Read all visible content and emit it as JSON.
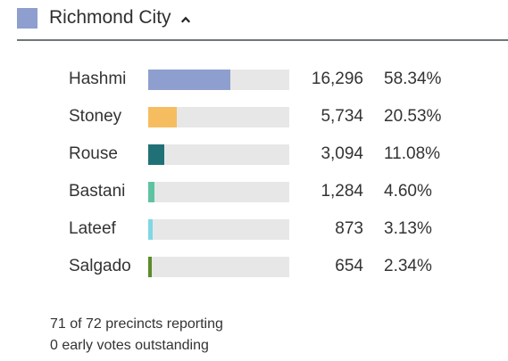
{
  "header": {
    "title": "Richmond City",
    "swatch_color": "#8e9ecf",
    "chevron_icon": "chevron-up-icon"
  },
  "candidates": [
    {
      "name": "Hashmi",
      "votes": "16,296",
      "percent": "58.34%",
      "share": 0.5834,
      "color": "#8e9ecf"
    },
    {
      "name": "Stoney",
      "votes": "5,734",
      "percent": "20.53%",
      "share": 0.2053,
      "color": "#f6bd60"
    },
    {
      "name": "Rouse",
      "votes": "3,094",
      "percent": "11.08%",
      "share": 0.1108,
      "color": "#1f7177"
    },
    {
      "name": "Bastani",
      "votes": "1,284",
      "percent": "4.60%",
      "share": 0.046,
      "color": "#5fc39f"
    },
    {
      "name": "Lateef",
      "votes": "873",
      "percent": "3.13%",
      "share": 0.0313,
      "color": "#7fd8e6"
    },
    {
      "name": "Salgado",
      "votes": "654",
      "percent": "2.34%",
      "share": 0.0234,
      "color": "#5b8c2a"
    }
  ],
  "bar_max_share": 1.0,
  "footer": {
    "precincts": "71 of 72 precincts reporting",
    "early_votes": "0 early votes outstanding"
  }
}
